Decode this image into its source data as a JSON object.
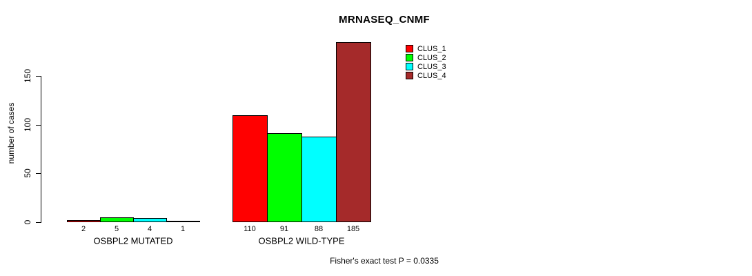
{
  "chart_data": {
    "type": "bar",
    "title": "MRNASEQ_CNMF",
    "ylabel": "number of cases",
    "xlabel": "",
    "groups": [
      "OSBPL2 MUTATED",
      "OSBPL2 WILD-TYPE"
    ],
    "series": [
      {
        "name": "CLUS_1",
        "color": "#FF0000",
        "values": [
          2,
          110
        ]
      },
      {
        "name": "CLUS_2",
        "color": "#00FF00",
        "values": [
          5,
          91
        ]
      },
      {
        "name": "CLUS_3",
        "color": "#00FFFF",
        "values": [
          4,
          88
        ]
      },
      {
        "name": "CLUS_4",
        "color": "#A52A2A",
        "values": [
          1,
          185
        ]
      }
    ],
    "bar_value_labels_shown": true,
    "y_ticks": [
      0,
      50,
      100,
      150
    ],
    "ylim": [
      0,
      185
    ],
    "grid": false,
    "legend_position": "right-top",
    "legend_entries": [
      "CLUS_1",
      "CLUS_2",
      "CLUS_3",
      "CLUS_4"
    ],
    "annotation": "Fisher's exact test P = 0.0335"
  },
  "colors": {
    "background": "#FFFFFF",
    "axis": "#000000",
    "text": "#000000"
  }
}
